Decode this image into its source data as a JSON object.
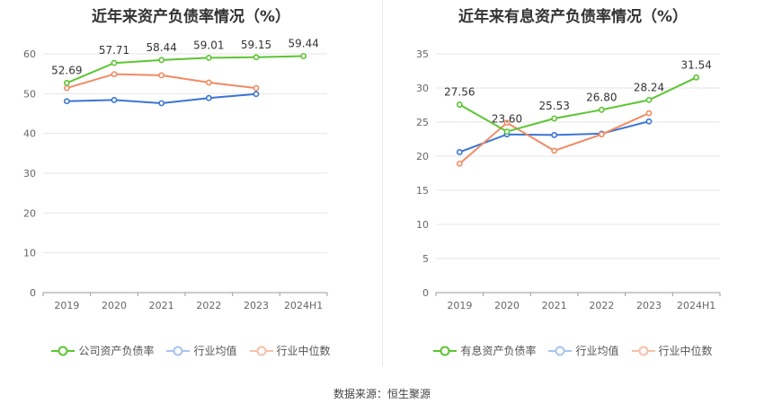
{
  "source": "数据来源：恒生聚源",
  "colors": {
    "company": "#5cc531",
    "avg": "#3a74d6",
    "median": "#f08a63",
    "grid": "#e6e6e6",
    "axis": "#999999",
    "text": "#666666",
    "label": "#333333"
  },
  "chart_data": [
    {
      "type": "line",
      "title": "近年来资产负债率情况（%）",
      "categories": [
        "2019",
        "2020",
        "2021",
        "2022",
        "2023",
        "2024H1"
      ],
      "ylim": [
        0,
        60
      ],
      "yticks": [
        0,
        10,
        20,
        30,
        40,
        50,
        60
      ],
      "grid": true,
      "legend": "bottom",
      "series": [
        {
          "name": "公司资产负债率",
          "color_key": "company",
          "values": [
            52.69,
            57.71,
            58.44,
            59.01,
            59.15,
            59.44
          ],
          "labels": [
            "52.69",
            "57.71",
            "58.44",
            "59.01",
            "59.15",
            "59.44"
          ]
        },
        {
          "name": "行业均值",
          "color_key": "avg",
          "values": [
            48.1,
            48.4,
            47.6,
            48.9,
            49.9,
            null
          ]
        },
        {
          "name": "行业中位数",
          "color_key": "median",
          "values": [
            51.4,
            54.9,
            54.6,
            52.8,
            51.4,
            null
          ]
        }
      ]
    },
    {
      "type": "line",
      "title": "近年来有息资产负债率情况（%）",
      "categories": [
        "2019",
        "2020",
        "2021",
        "2022",
        "2023",
        "2024H1"
      ],
      "ylim": [
        0,
        35
      ],
      "yticks": [
        0,
        5,
        10,
        15,
        20,
        25,
        30,
        35
      ],
      "grid": true,
      "legend": "bottom",
      "series": [
        {
          "name": "有息资产负债率",
          "color_key": "company",
          "values": [
            27.56,
            23.6,
            25.53,
            26.8,
            28.24,
            31.54
          ],
          "labels": [
            "27.56",
            "23.60",
            "25.53",
            "26.80",
            "28.24",
            "31.54"
          ]
        },
        {
          "name": "行业均值",
          "color_key": "avg",
          "values": [
            20.6,
            23.2,
            23.1,
            23.3,
            25.1,
            null
          ]
        },
        {
          "name": "行业中位数",
          "color_key": "median",
          "values": [
            18.9,
            24.9,
            20.8,
            23.2,
            26.3,
            null
          ]
        }
      ]
    }
  ]
}
